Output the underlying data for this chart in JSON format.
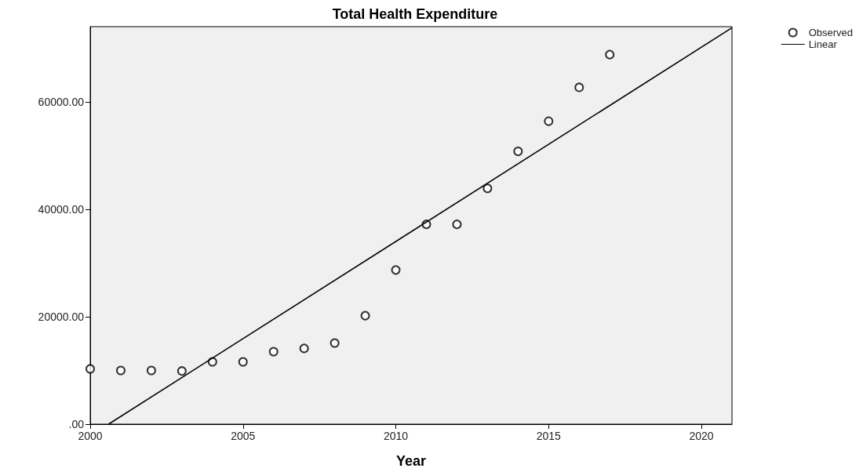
{
  "chart_data": {
    "type": "scatter",
    "title": "Total Health Expenditure",
    "xlabel": "Year",
    "x": [
      2000,
      2001,
      2002,
      2003,
      2004,
      2005,
      2006,
      2007,
      2008,
      2009,
      2010,
      2011,
      2012,
      2013,
      2014,
      2015,
      2016,
      2017
    ],
    "series": [
      {
        "name": "Observed",
        "color": "#000000",
        "marker": "circle",
        "values": [
          10300,
          10000,
          10000,
          9900,
          11600,
          11600,
          13500,
          14100,
          15100,
          20200,
          28700,
          37200,
          37200,
          43900,
          50800,
          56400,
          62700,
          68800
        ]
      },
      {
        "name": "Linear",
        "type": "line",
        "color": "#000000",
        "marker": "none",
        "line_style": "solid",
        "x": [
          2000.6,
          2021
        ],
        "values": [
          0,
          73800
        ]
      }
    ],
    "xlim": [
      2000,
      2021
    ],
    "xticks": [
      2000,
      2005,
      2010,
      2015,
      2020
    ],
    "ylim": [
      0,
      74000
    ],
    "yticks": [
      {
        "value": 0,
        "label": ".00"
      },
      {
        "value": 20000,
        "label": "20000.00"
      },
      {
        "value": 40000,
        "label": "40000.00"
      },
      {
        "value": 60000,
        "label": "60000.00"
      }
    ],
    "grid": false,
    "legend": "top right"
  }
}
